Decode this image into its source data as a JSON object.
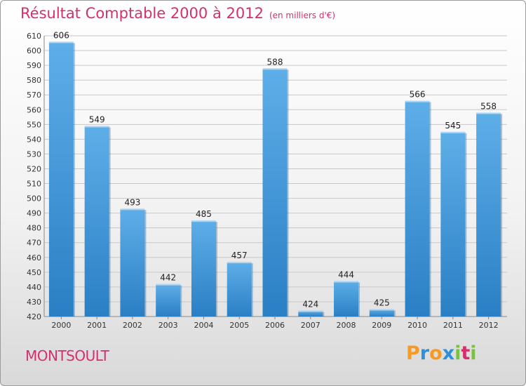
{
  "chart_data": {
    "type": "bar",
    "title": "Résultat Comptable 2000 à 2012",
    "subtitle": "(en milliers d'€)",
    "categories": [
      "2000",
      "2001",
      "2002",
      "2003",
      "2004",
      "2005",
      "2006",
      "2007",
      "2008",
      "2009",
      "2010",
      "2011",
      "2012"
    ],
    "values": [
      606,
      549,
      493,
      442,
      485,
      457,
      588,
      424,
      444,
      425,
      566,
      545,
      558
    ],
    "ylim": [
      420,
      610
    ],
    "ytick_step": 10,
    "grid": true,
    "bar_color": "#3d93d6",
    "grid_color": "#c8c8c8"
  },
  "footer": {
    "commune": "MONTSOULT",
    "logo": "Proxiti"
  },
  "colors": {
    "accent": "#d4306e",
    "logo_orange": "#f59a23",
    "logo_blue": "#2f8fd8",
    "logo_green": "#7ac143"
  }
}
